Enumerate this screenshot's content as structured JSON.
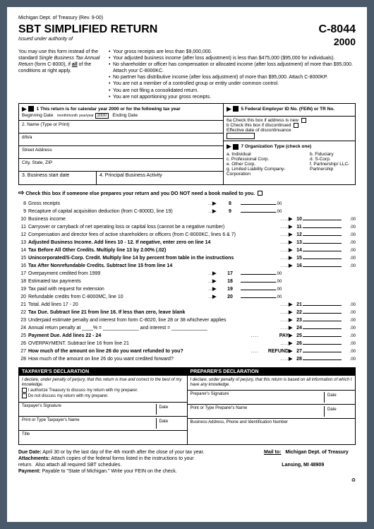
{
  "header": {
    "dept": "Michigan Dept. of Treasury (Rev. 9-00)",
    "title": "SBT SIMPLIFIED RETURN",
    "issued": "Issued under authority of",
    "form_num": "C-8044",
    "form_year": "2000"
  },
  "intro": {
    "left": "You may use this form instead of the standard Single Business Tax Annual Return (form C-8000), if all of the conditions at right apply.",
    "bullets": [
      "Your gross receipts are less than $9,000,000.",
      "Your adjusted business income (after loss adjustment) is less than $475,000 ($95,000 for individuals).",
      "No shareholder or officer has compensation or allocated income (after loss adjustment) of more than $95,000. Attach your C-8000KC.",
      "No partner has distributive income (after loss adjustment) of more than $95,000. Attach C-8000KP.",
      "You are not a member of a controlled group or entity under common control.",
      "You are not filing a consolidated return.",
      "You are not apportioning your gross receipts."
    ]
  },
  "box1": {
    "label": "1 This return is for calendar year 2000 or for the following tax year",
    "begin": "Beginning Date",
    "month": "month/month",
    "year": "year/year",
    "yearval": "2000",
    "end": "Ending Date"
  },
  "box2": {
    "label": "2. Name (Type or Print)",
    "dba": "d/b/a",
    "street": "Street Address",
    "city": "City, State, ZIP"
  },
  "box3": {
    "label": "3. Business start date"
  },
  "box4": {
    "label": "4. Principal Business Activity"
  },
  "box5": {
    "label": "5 Federal Employer ID No. (FEIN) or TR No."
  },
  "box6": {
    "a": "6a Check this box if address is new",
    "b": "b  Check this box if discontinued",
    "eff": "Effective date of discontinuance"
  },
  "box7": {
    "label": "7 Organization Type (check one)",
    "opts_left": [
      "a.  Individual",
      "c.  Professional Corp.",
      "e.  Other Corp.",
      "g.  Limited Liability Company-Corporation"
    ],
    "opts_right": [
      "b.  Fiduciary",
      "d.  S-Corp.",
      "f.  Partnership/ LLC-Partnership"
    ]
  },
  "checkrow": "Check this box if someone else prepares your return and you DO NOT need a book mailed to you.",
  "lines": [
    {
      "n": "8",
      "t": "Gross receipts",
      "mid": true,
      "midn": "8",
      "cents": ".00"
    },
    {
      "n": "9",
      "t": "Recapture of capital acquisition deduction (from C-8000D, line 19)",
      "mid": true,
      "midn": "9",
      "cents": ".00"
    },
    {
      "n": "10",
      "t": "Business income",
      "r": true,
      "rn": "10",
      "cents": ".00"
    },
    {
      "n": "11",
      "t": "Carryover or carryback of net operating loss or capital loss (cannot be a negative number)",
      "r": true,
      "rn": "11",
      "cents": ".00"
    },
    {
      "n": "12",
      "t": "Compensation and director fees of active shareholders or officers (from C-8000KC, lines 6 & 7)",
      "r": true,
      "rn": "12",
      "cents": ".00"
    },
    {
      "n": "13",
      "t": "Adjusted Business Income. Add lines 10 - 12. If negative, enter zero on line 14",
      "r": true,
      "rn": "13",
      "cents": ".00",
      "bold": true
    },
    {
      "n": "14",
      "t": "Tax Before All Other Credits. Multiply line 13 by 2.00% (.02)",
      "r": true,
      "rn": "14",
      "cents": ".00",
      "bold": true
    },
    {
      "n": "15",
      "t": "Unincorporated/S-Corp. Credit. Multiply line 14 by percent from table in the instructions",
      "r": true,
      "rn": "15",
      "cents": ".00",
      "bold": true
    },
    {
      "n": "16",
      "t": "Tax After Nonrefundable Credits. Subtract line 15 from line 14",
      "r": true,
      "rn": "16",
      "cents": ".00",
      "bold": true
    },
    {
      "n": "17",
      "t": "Overpayment credited from 1999",
      "mid": true,
      "midn": "17",
      "cents": ".00"
    },
    {
      "n": "18",
      "t": "Estimated tax payments",
      "mid": true,
      "midn": "18",
      "cents": ".00"
    },
    {
      "n": "19",
      "t": "Tax paid with request for extension",
      "mid": true,
      "midn": "19",
      "cents": ".00"
    },
    {
      "n": "20",
      "t": "Refundable credits from C-8000MC, line 10",
      "mid": true,
      "midn": "20",
      "cents": ".00"
    },
    {
      "n": "21",
      "t": "Total. Add lines 17 - 20",
      "r": true,
      "rn": "21",
      "cents": ".00"
    },
    {
      "n": "22",
      "t": "Tax Due. Subtract line 21 from line 16. If less than zero, leave blank",
      "r": true,
      "rn": "22",
      "cents": ".00",
      "bold": true
    },
    {
      "n": "23",
      "t": "Underpaid estimate penalty and interest from form C-8020, line 28 or 38 whichever applies",
      "r": true,
      "rn": "23",
      "cents": ".00"
    },
    {
      "n": "24",
      "t": "Annual return penalty  at ____% = _____________ and interest = _____________",
      "r": true,
      "rn": "24",
      "cents": ".00"
    },
    {
      "n": "25",
      "t": "Payment Due.  Add lines 22 - 24",
      "r": true,
      "rn": "25",
      "cents": ".00",
      "bold": true,
      "tag": "PAY"
    },
    {
      "n": "26",
      "t": "OVERPAYMENT.  Subtract line 16 from line 21",
      "r": true,
      "rn": "26",
      "cents": ".00"
    },
    {
      "n": "27",
      "t": "How much of the amount on line 26 do you want refunded to you?",
      "r": true,
      "rn": "27",
      "cents": ".00",
      "bold": true,
      "tag": "REFUND"
    },
    {
      "n": "28",
      "t": "How much of the amount on line 26 do you want credited forward?",
      "r": true,
      "rn": "28",
      "cents": ".00"
    }
  ],
  "decl": {
    "tax_header": "TAXPAYER'S DECLARATION",
    "tax_body": "I declare, under penalty of perjury, that this return is true and correct to the best of my knowledge.",
    "tax_auth": "I authorize Treasury to discuss my return with my preparer.",
    "tax_noauth": "Do not discuss my return with my preparer.",
    "tax_sig": "Taxpayer's Signature",
    "tax_name": "Print or Type Taxpayer's Name",
    "tax_title": "Title",
    "date": "Date",
    "prep_header": "PREPARER'S DECLARATION",
    "prep_body": "I declare, under penalty of perjury, that this return is based on all information of which I have any knowledge.",
    "prep_sig": "Preparer's Signature",
    "prep_name": "Print or Type Preparer's Name",
    "prep_addr": "Business Address, Phone and Identification Number"
  },
  "footer": {
    "due": "Due Date:  April 30 or by the last day of the 4th month after the close of your tax year.",
    "attach": "Attachments: Attach copies of the federal forms listed in the instructions to your return.  Also attach all required SBT schedules.",
    "payment": "Payment: Payable to \"State of Michigan.\" Write your FEIN on the check.",
    "mailto": "Mail to:",
    "addr1": "Michigan Dept. of Treasury",
    "addr2": "Lansing, MI  48909"
  }
}
